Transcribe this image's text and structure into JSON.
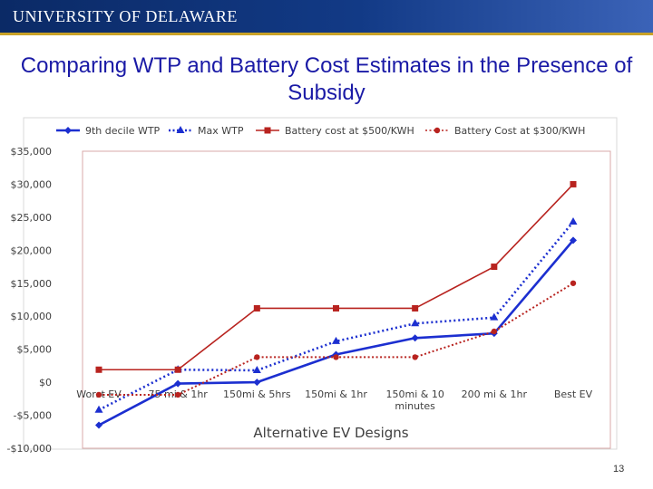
{
  "header": {
    "university_logo": "UNIVERSITY OF DELAWARE"
  },
  "slide": {
    "title": "Comparing WTP and Battery Cost Estimates in the Presence of Subsidy",
    "page_number": "13"
  },
  "colors": {
    "blue": "#1c2fd0",
    "red": "#b8231f",
    "plot_border": "#d9a9a8"
  },
  "chart_data": {
    "type": "line",
    "title": "",
    "xlabel": "Alternative EV Designs",
    "ylabel": "",
    "categories": [
      "Worst EV",
      "75 mi & 1hr",
      "150mi & 5hrs",
      "150mi & 1hr",
      "150mi & 10 minutes",
      "200 mi & 1hr",
      "Best EV"
    ],
    "ylim": [
      -10000,
      35000
    ],
    "ytick_values": [
      -10000,
      -5000,
      0,
      5000,
      10000,
      15000,
      20000,
      25000,
      30000,
      35000
    ],
    "ytick_labels": [
      "-$10,000",
      "-$5,000",
      "$0",
      "$5,000",
      "$10,000",
      "$15,000",
      "$20,000",
      "$25,000",
      "$30,000",
      "$35,000"
    ],
    "series": [
      {
        "name": "9th decile WTP",
        "color": "#1c2fd0",
        "style": "solid",
        "marker": "diamond",
        "values": [
          -6500,
          -200,
          0,
          4200,
          6700,
          7400,
          21500
        ]
      },
      {
        "name": "Max WTP",
        "color": "#1c2fd0",
        "style": "dotted",
        "marker": "triangle",
        "values": [
          -4200,
          1900,
          1800,
          6200,
          8900,
          9800,
          24300
        ]
      },
      {
        "name": "Battery cost at $500/KWH",
        "color": "#b8231f",
        "style": "solid",
        "marker": "square",
        "values": [
          1900,
          1900,
          11200,
          11200,
          11200,
          17500,
          30000
        ]
      },
      {
        "name": "Battery Cost at $300/KWH",
        "color": "#b8231f",
        "style": "dotted",
        "marker": "circle",
        "values": [
          -1900,
          -1900,
          3800,
          3800,
          3800,
          7700,
          15000
        ]
      }
    ]
  }
}
